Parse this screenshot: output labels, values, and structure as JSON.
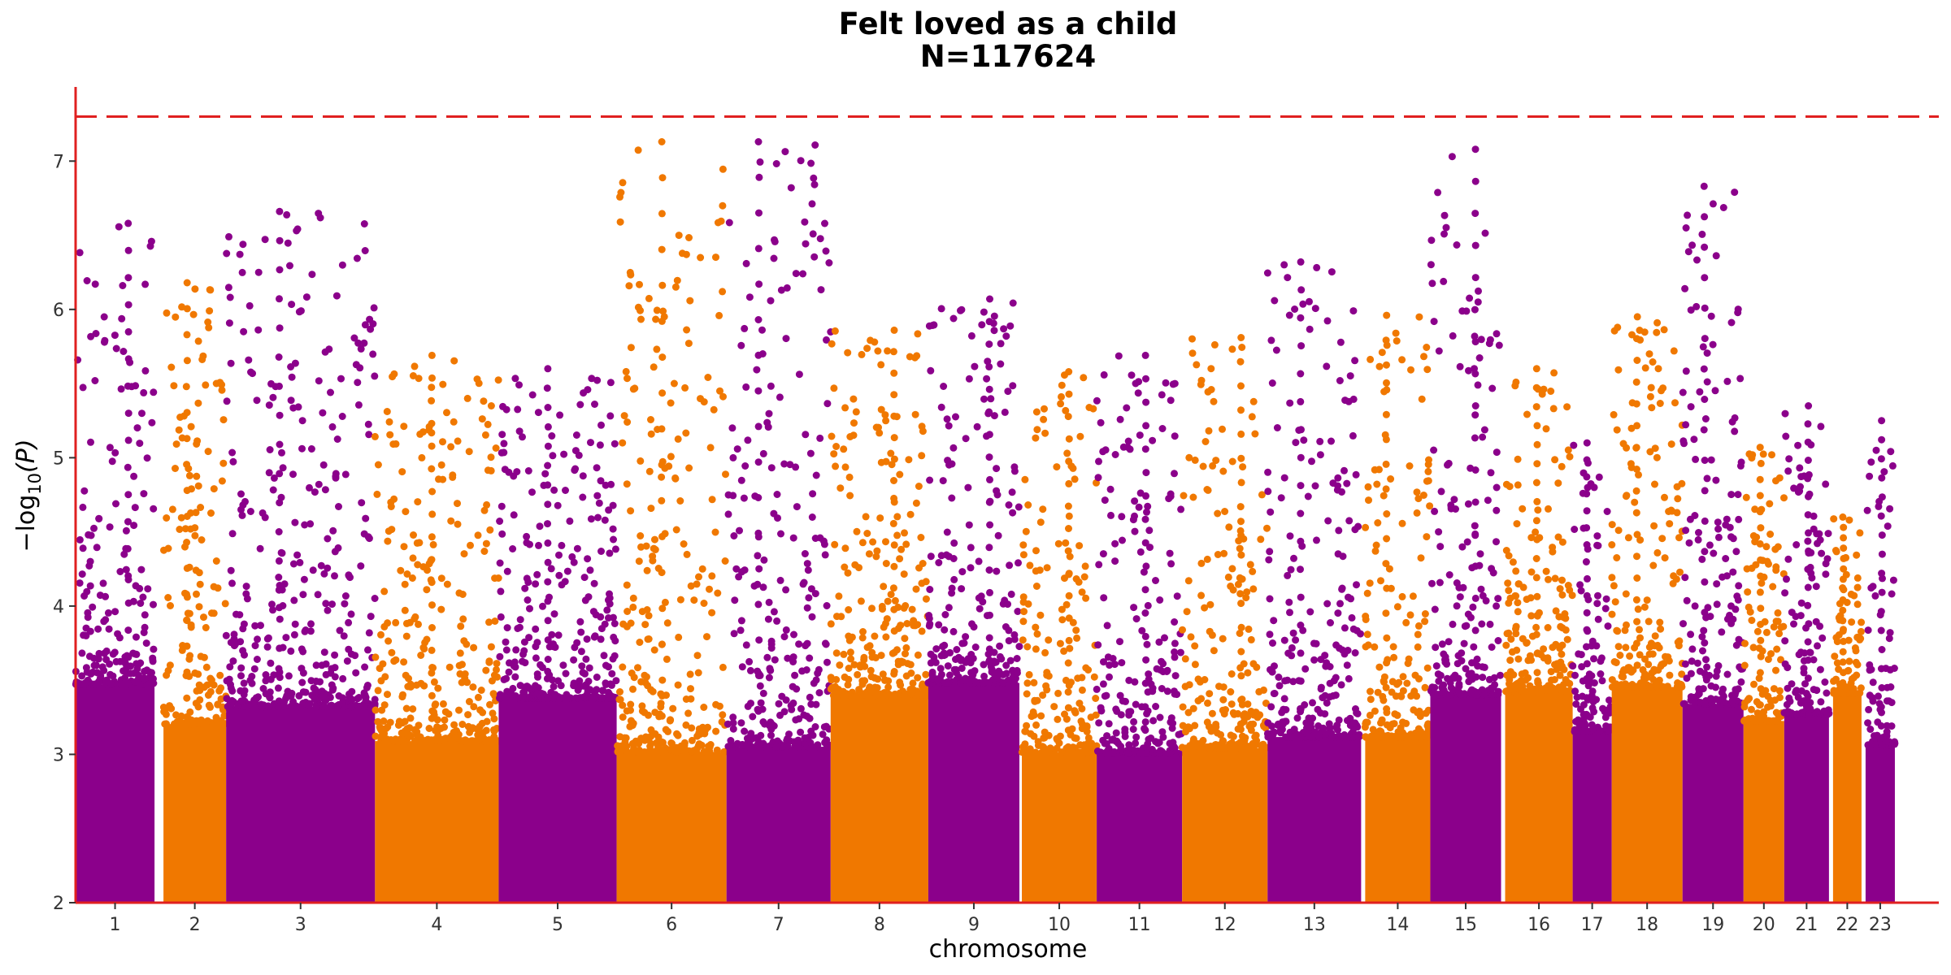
{
  "chart_data": {
    "type": "scatter",
    "title": "Felt loved as a child",
    "subtitle": "N=117624",
    "xlabel": "chromosome",
    "ylabel": "−log",
    "ylabel_sub": "10",
    "ylabel_tail": "(P)",
    "ylim": [
      2,
      7.5
    ],
    "yticks": [
      2,
      3,
      4,
      5,
      6,
      7
    ],
    "grid": false,
    "legend": "none",
    "threshold": 7.3,
    "colors": {
      "odd": "#8b008b",
      "even": "#f07800",
      "threshold": "#e02020",
      "axis": "#e02020"
    },
    "chromosomes": [
      {
        "label": "1",
        "start": 0,
        "end": 97,
        "peak": 6.58
      },
      {
        "label": "2",
        "start": 108,
        "end": 185,
        "peak": 6.18
      },
      {
        "label": "3",
        "start": 185,
        "end": 368,
        "peak": 6.66
      },
      {
        "label": "4",
        "start": 368,
        "end": 520,
        "peak": 5.69
      },
      {
        "label": "5",
        "start": 520,
        "end": 665,
        "peak": 5.6
      },
      {
        "label": "6",
        "start": 665,
        "end": 800,
        "peak": 7.13
      },
      {
        "label": "7",
        "start": 800,
        "end": 928,
        "peak": 7.13
      },
      {
        "label": "8",
        "start": 928,
        "end": 1048,
        "peak": 5.86
      },
      {
        "label": "9",
        "start": 1048,
        "end": 1160,
        "peak": 6.07
      },
      {
        "label": "10",
        "start": 1163,
        "end": 1255,
        "peak": 5.58
      },
      {
        "label": "11",
        "start": 1255,
        "end": 1360,
        "peak": 5.69
      },
      {
        "label": "12",
        "start": 1360,
        "end": 1465,
        "peak": 5.81
      },
      {
        "label": "13",
        "start": 1465,
        "end": 1580,
        "peak": 6.32
      },
      {
        "label": "14",
        "start": 1585,
        "end": 1665,
        "peak": 5.96
      },
      {
        "label": "15",
        "start": 1665,
        "end": 1752,
        "peak": 7.08
      },
      {
        "label": "16",
        "start": 1757,
        "end": 1840,
        "peak": 5.6
      },
      {
        "label": "17",
        "start": 1840,
        "end": 1888,
        "peak": 5.1
      },
      {
        "label": "18",
        "start": 1888,
        "end": 1975,
        "peak": 5.95
      },
      {
        "label": "19",
        "start": 1975,
        "end": 2050,
        "peak": 6.83
      },
      {
        "label": "20",
        "start": 2050,
        "end": 2100,
        "peak": 5.07
      },
      {
        "label": "21",
        "start": 2100,
        "end": 2155,
        "peak": 5.35
      },
      {
        "label": "22",
        "start": 2160,
        "end": 2195,
        "peak": 4.6
      },
      {
        "label": "23",
        "start": 2200,
        "end": 2236,
        "peak": 5.25
      }
    ],
    "xtick_labels": [
      "1",
      "2",
      "3",
      "4",
      "5",
      "6",
      "7",
      "8",
      "9",
      "10",
      "11",
      "12",
      "13",
      "14",
      "15",
      "16",
      "17",
      "18",
      "19",
      "20",
      "21",
      "22",
      "23"
    ]
  }
}
